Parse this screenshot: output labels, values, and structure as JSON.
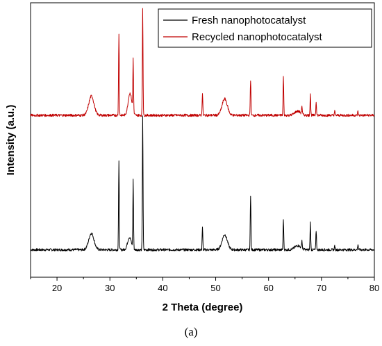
{
  "caption": "(a)",
  "chart_data": {
    "type": "line",
    "title": "",
    "xlabel": "2 Theta (degree)",
    "ylabel": "Intensity (a.u.)",
    "xlim": [
      15,
      80
    ],
    "xticks": [
      20,
      30,
      40,
      50,
      60,
      70,
      80
    ],
    "ylim": [
      0,
      1
    ],
    "yticks_shown": false,
    "legend_position": "top-right",
    "series": [
      {
        "name": "Fresh nanophotocatalyst",
        "color": "#000000",
        "baseline": 0.1,
        "broad_peaks": [
          {
            "x": 26.5,
            "h": 0.06,
            "w": 0.7
          },
          {
            "x": 33.7,
            "h": 0.045,
            "w": 0.5
          },
          {
            "x": 51.7,
            "h": 0.055,
            "w": 0.7
          },
          {
            "x": 65.5,
            "h": 0.015,
            "w": 0.8
          }
        ],
        "sharp_peaks": [
          {
            "x": 31.7,
            "h": 0.32
          },
          {
            "x": 34.4,
            "h": 0.25
          },
          {
            "x": 36.2,
            "h": 0.49
          },
          {
            "x": 47.5,
            "h": 0.08
          },
          {
            "x": 56.6,
            "h": 0.2
          },
          {
            "x": 62.8,
            "h": 0.11
          },
          {
            "x": 66.3,
            "h": 0.03
          },
          {
            "x": 67.9,
            "h": 0.1
          },
          {
            "x": 69.0,
            "h": 0.07
          },
          {
            "x": 72.5,
            "h": 0.015
          },
          {
            "x": 76.9,
            "h": 0.02
          }
        ]
      },
      {
        "name": "Recycled nanophotocatalyst",
        "color": "#c00000",
        "baseline": 0.59,
        "broad_peaks": [
          {
            "x": 26.5,
            "h": 0.07,
            "w": 0.7
          },
          {
            "x": 33.8,
            "h": 0.08,
            "w": 0.5
          },
          {
            "x": 51.7,
            "h": 0.06,
            "w": 0.7
          },
          {
            "x": 65.5,
            "h": 0.015,
            "w": 0.8
          }
        ],
        "sharp_peaks": [
          {
            "x": 31.7,
            "h": 0.3
          },
          {
            "x": 34.4,
            "h": 0.19
          },
          {
            "x": 36.2,
            "h": 0.39
          },
          {
            "x": 47.5,
            "h": 0.08
          },
          {
            "x": 56.6,
            "h": 0.13
          },
          {
            "x": 62.8,
            "h": 0.14
          },
          {
            "x": 66.3,
            "h": 0.03
          },
          {
            "x": 67.9,
            "h": 0.08
          },
          {
            "x": 69.0,
            "h": 0.05
          },
          {
            "x": 72.5,
            "h": 0.015
          },
          {
            "x": 76.9,
            "h": 0.015
          }
        ]
      }
    ]
  }
}
